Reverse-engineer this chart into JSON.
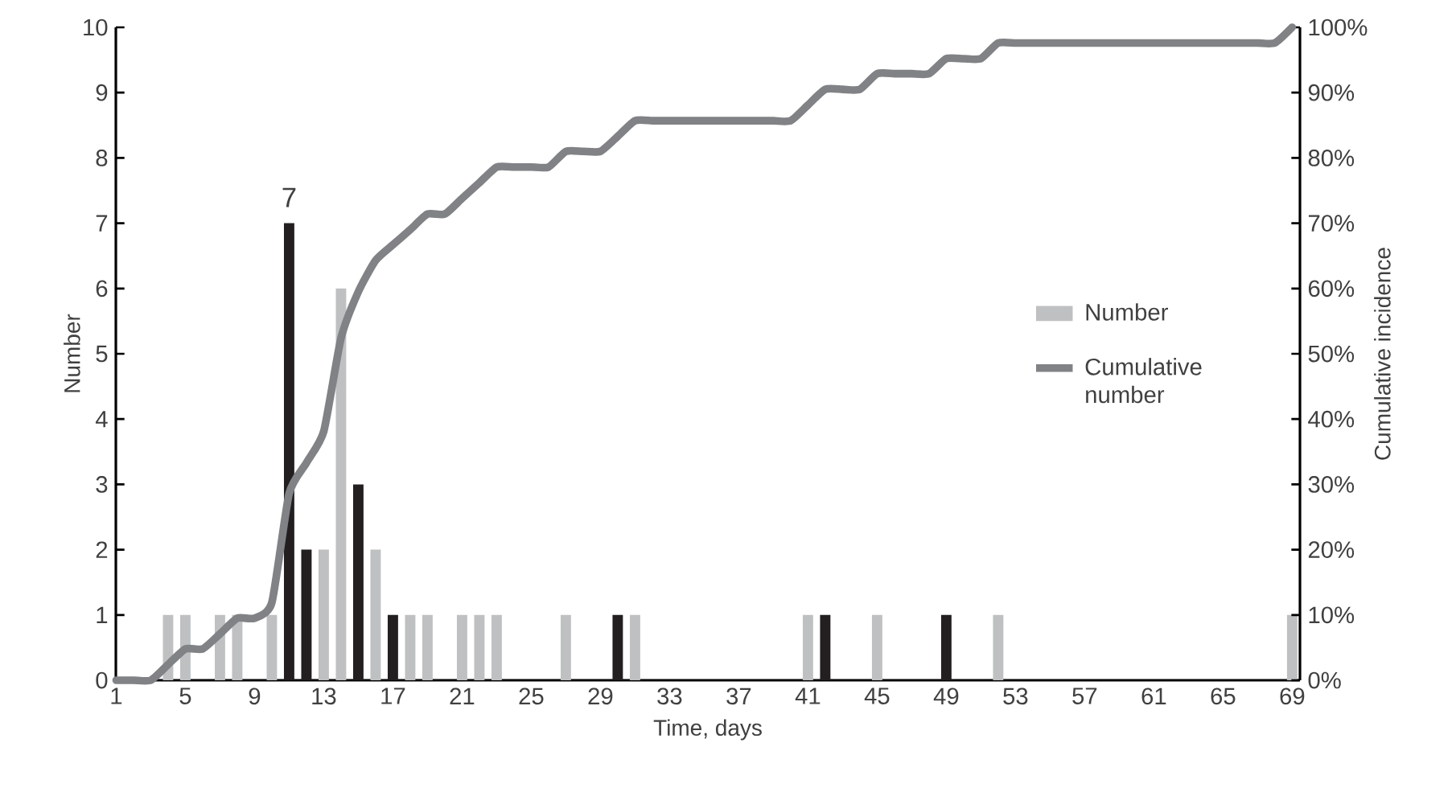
{
  "chart_data": {
    "type": "bar",
    "xlabel": "Time, days",
    "ylabel": "Number",
    "y2label": "Cumulative incidence",
    "legend": "right",
    "categories": [
      "1",
      null,
      null,
      null,
      "5",
      null,
      null,
      null,
      "9",
      null,
      null,
      null,
      "13",
      null,
      null,
      null,
      "17",
      null,
      null,
      null,
      "21",
      null,
      null,
      null,
      "25",
      null,
      null,
      null,
      "29",
      null,
      null,
      null,
      "33",
      null,
      null,
      null,
      "37",
      null,
      null,
      null,
      "41",
      null,
      null,
      null,
      "45",
      null,
      null,
      null,
      "49",
      null,
      null,
      null,
      "53",
      null,
      null,
      null,
      "57",
      null,
      null,
      null,
      "61",
      null,
      null,
      null,
      "65",
      null,
      null,
      null,
      "69"
    ],
    "ylim": [
      0,
      10
    ],
    "yticks": [
      0,
      1,
      2,
      3,
      4,
      5,
      6,
      7,
      8,
      9,
      10
    ],
    "y2lim": [
      0,
      100
    ],
    "y2ticks": [
      {
        "value": 0,
        "label": "0%"
      },
      {
        "value": 10,
        "label": "10%"
      },
      {
        "value": 20,
        "label": "20%"
      },
      {
        "value": 30,
        "label": "30%"
      },
      {
        "value": 40,
        "label": "40%"
      },
      {
        "value": 50,
        "label": "50%"
      },
      {
        "value": 60,
        "label": "60%"
      },
      {
        "value": 70,
        "label": "70%"
      },
      {
        "value": 80,
        "label": "80%"
      },
      {
        "value": 90,
        "label": "90%"
      },
      {
        "value": 100,
        "label": "100%"
      }
    ],
    "series": [
      {
        "name": "Number",
        "color": "#bfc0c2",
        "values": [
          0,
          0,
          0,
          1,
          1,
          0,
          1,
          1,
          0,
          1,
          7,
          2,
          2,
          6,
          3,
          2,
          1,
          1,
          1,
          0,
          1,
          1,
          1,
          0,
          0,
          0,
          1,
          0,
          0,
          1,
          1,
          0,
          0,
          0,
          0,
          0,
          0,
          0,
          0,
          0,
          1,
          1,
          0,
          0,
          1,
          0,
          0,
          0,
          1,
          0,
          0,
          1,
          0,
          0,
          0,
          0,
          0,
          0,
          0,
          0,
          0,
          0,
          0,
          0,
          0,
          0,
          0,
          0,
          1
        ],
        "colors": [
          "#bfc0c2",
          "#bfc0c2",
          "#bfc0c2",
          "#bfc0c2",
          "#bfc0c2",
          "#bfc0c2",
          "#bfc0c2",
          "#bfc0c2",
          "#bfc0c2",
          "#bfc0c2",
          "#231f20",
          "#231f20",
          "#bfc0c2",
          "#bfc0c2",
          "#231f20",
          "#bfc0c2",
          "#231f20",
          "#bfc0c2",
          "#bfc0c2",
          "#bfc0c2",
          "#bfc0c2",
          "#bfc0c2",
          "#bfc0c2",
          "#bfc0c2",
          "#bfc0c2",
          "#bfc0c2",
          "#bfc0c2",
          "#bfc0c2",
          "#bfc0c2",
          "#231f20",
          "#bfc0c2",
          "#bfc0c2",
          "#bfc0c2",
          "#bfc0c2",
          "#bfc0c2",
          "#bfc0c2",
          "#bfc0c2",
          "#bfc0c2",
          "#bfc0c2",
          "#bfc0c2",
          "#bfc0c2",
          "#231f20",
          "#bfc0c2",
          "#bfc0c2",
          "#bfc0c2",
          "#bfc0c2",
          "#bfc0c2",
          "#bfc0c2",
          "#231f20",
          "#bfc0c2",
          "#bfc0c2",
          "#bfc0c2",
          "#bfc0c2",
          "#bfc0c2",
          "#bfc0c2",
          "#bfc0c2",
          "#bfc0c2",
          "#bfc0c2",
          "#bfc0c2",
          "#bfc0c2",
          "#bfc0c2",
          "#bfc0c2",
          "#bfc0c2",
          "#bfc0c2",
          "#bfc0c2",
          "#bfc0c2",
          "#bfc0c2",
          "#bfc0c2",
          "#bfc0c2"
        ],
        "value_labels": [
          null,
          null,
          null,
          null,
          null,
          null,
          null,
          null,
          null,
          null,
          "7",
          null,
          null,
          null,
          null,
          null,
          null,
          null,
          null,
          null,
          null,
          null,
          null,
          null,
          null,
          null,
          null,
          null,
          null,
          null,
          null,
          null,
          null,
          null,
          null,
          null,
          null,
          null,
          null,
          null,
          null,
          null,
          null,
          null,
          null,
          null,
          null,
          null,
          null,
          null,
          null,
          null,
          null,
          null,
          null,
          null,
          null,
          null,
          null,
          null,
          null,
          null,
          null,
          null,
          null,
          null,
          null,
          null,
          null
        ]
      },
      {
        "name": "Cumulative number",
        "type": "line",
        "axis": "y2",
        "color": "#808285",
        "values": [
          0,
          0,
          0,
          2.4,
          4.8,
          4.8,
          7.1,
          9.5,
          9.5,
          11.9,
          28.6,
          33.3,
          38.1,
          52.4,
          59.5,
          64.3,
          66.7,
          69.0,
          71.4,
          71.4,
          73.8,
          76.2,
          78.6,
          78.6,
          78.6,
          78.6,
          81.0,
          81.0,
          81.0,
          83.3,
          85.7,
          85.7,
          85.7,
          85.7,
          85.7,
          85.7,
          85.7,
          85.7,
          85.7,
          85.7,
          88.1,
          90.5,
          90.5,
          90.5,
          92.9,
          92.9,
          92.9,
          92.9,
          95.2,
          95.2,
          95.2,
          97.6,
          97.6,
          97.6,
          97.6,
          97.6,
          97.6,
          97.6,
          97.6,
          97.6,
          97.6,
          97.6,
          97.6,
          97.6,
          97.6,
          97.6,
          97.6,
          97.6,
          100
        ]
      }
    ]
  }
}
